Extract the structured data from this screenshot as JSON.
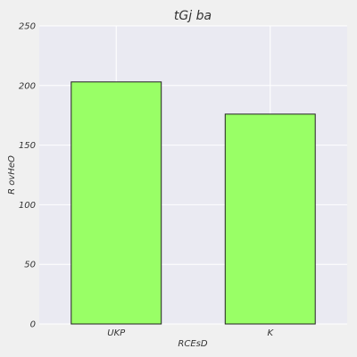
{
  "chart_data": {
    "type": "bar",
    "title": "tGj ba",
    "xlabel": "RCEsD",
    "ylabel": "R ovHeO",
    "categories": [
      "UKP",
      "K"
    ],
    "values": [
      203,
      176
    ],
    "ylim": [
      0,
      250
    ],
    "yticks": [
      0,
      50,
      100,
      150,
      200,
      250
    ],
    "grid": true,
    "colors": {
      "bar_fill": "#99ff66",
      "bar_edge": "#222222",
      "plot_bg": "#eaeaf2",
      "page_bg": "#f0f0f0",
      "grid": "#ffffff",
      "text": "#333333"
    }
  }
}
